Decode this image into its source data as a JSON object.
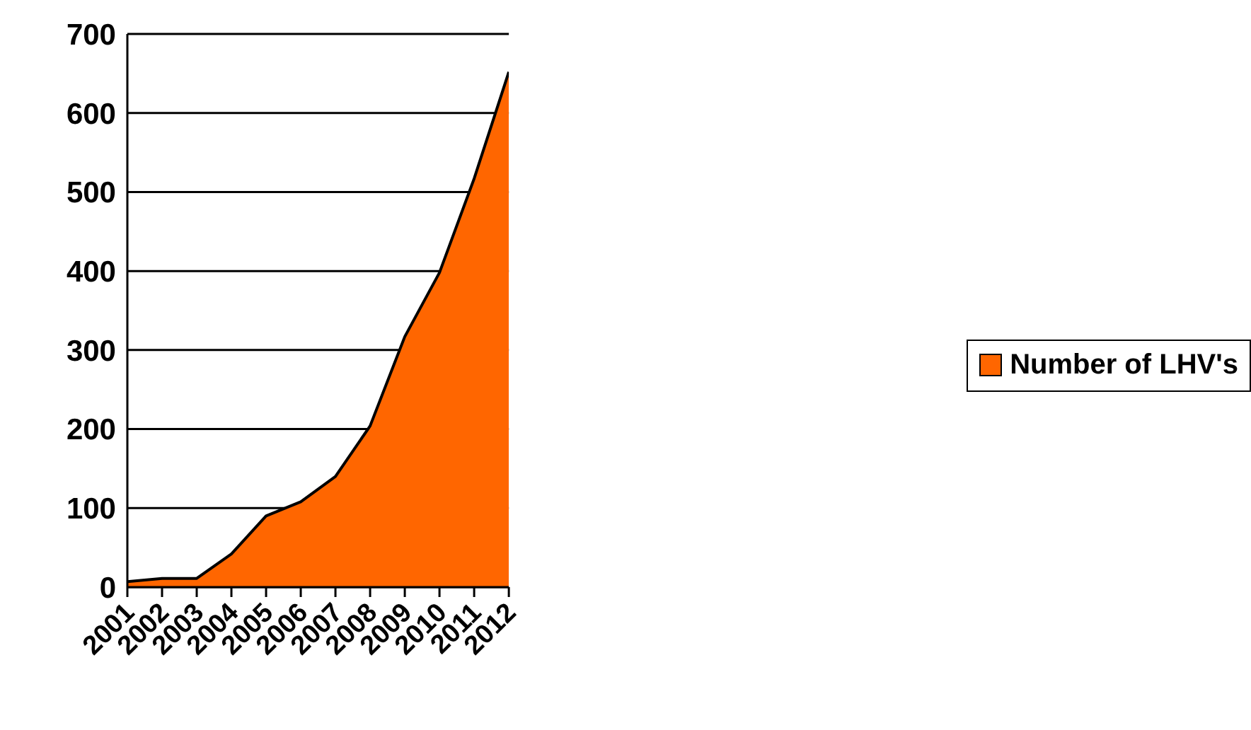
{
  "chart_data": {
    "type": "area",
    "categories": [
      "2001",
      "2002",
      "2003",
      "2004",
      "2005",
      "2006",
      "2007",
      "2008",
      "2009",
      "2010",
      "2011",
      "2012"
    ],
    "series": [
      {
        "name": "Number of LHV's",
        "color": "#ff6600",
        "values": [
          7,
          11,
          11,
          42,
          90,
          108,
          140,
          204,
          317,
          398,
          517,
          652
        ]
      }
    ],
    "ylim": [
      0,
      700
    ],
    "yticks": [
      0,
      100,
      200,
      300,
      400,
      500,
      600,
      700
    ],
    "grid": "y",
    "legend": "right"
  }
}
